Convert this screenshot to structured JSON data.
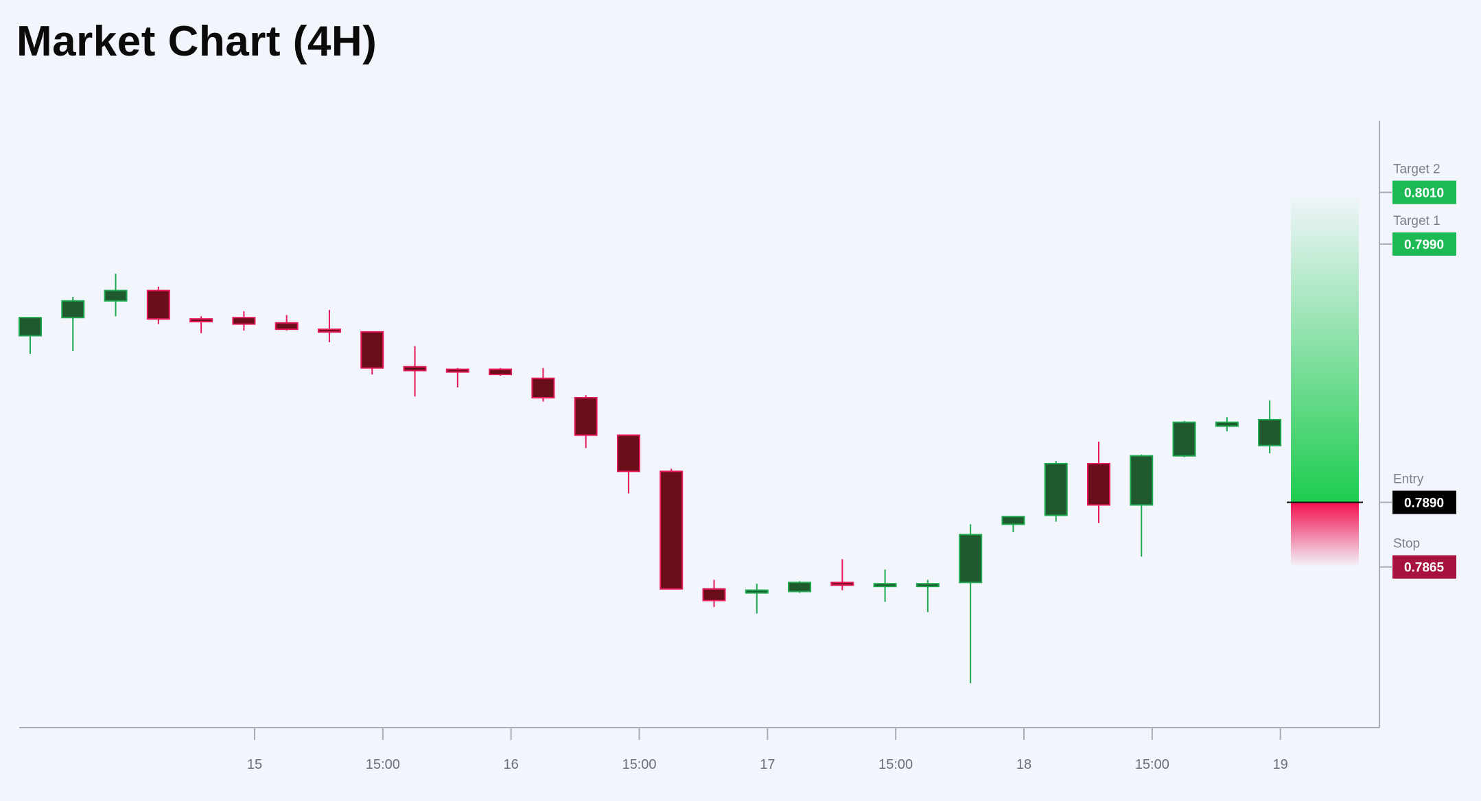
{
  "title": "Market Chart (4H)",
  "chart_data": {
    "type": "candlestick",
    "title": "Market Chart (4H)",
    "timeframe": "4H",
    "x_ticks": [
      {
        "label": "15",
        "index": 5.25
      },
      {
        "label": "15:00",
        "index": 8.25
      },
      {
        "label": "16",
        "index": 11.25
      },
      {
        "label": "15:00",
        "index": 14.25
      },
      {
        "label": "17",
        "index": 17.25
      },
      {
        "label": "15:00",
        "index": 20.25
      },
      {
        "label": "18",
        "index": 23.25
      },
      {
        "label": "15:00",
        "index": 26.25
      },
      {
        "label": "19",
        "index": 29.25
      }
    ],
    "ylim": [
      0.7819,
      0.8038
    ],
    "candles": [
      {
        "open": 0.79545,
        "high": 0.79595,
        "low": 0.79475,
        "close": 0.79615
      },
      {
        "open": 0.79615,
        "high": 0.79695,
        "low": 0.79485,
        "close": 0.7968
      },
      {
        "open": 0.7968,
        "high": 0.79785,
        "low": 0.7962,
        "close": 0.7972
      },
      {
        "open": 0.7972,
        "high": 0.79735,
        "low": 0.7959,
        "close": 0.7961
      },
      {
        "open": 0.7961,
        "high": 0.7962,
        "low": 0.79555,
        "close": 0.796
      },
      {
        "open": 0.79615,
        "high": 0.7964,
        "low": 0.79565,
        "close": 0.7959
      },
      {
        "open": 0.79595,
        "high": 0.79625,
        "low": 0.79565,
        "close": 0.7957
      },
      {
        "open": 0.7957,
        "high": 0.79645,
        "low": 0.7952,
        "close": 0.7956
      },
      {
        "open": 0.7956,
        "high": 0.7956,
        "low": 0.79395,
        "close": 0.7942
      },
      {
        "open": 0.79425,
        "high": 0.79505,
        "low": 0.7931,
        "close": 0.7941
      },
      {
        "open": 0.79415,
        "high": 0.7942,
        "low": 0.79345,
        "close": 0.79405
      },
      {
        "open": 0.79415,
        "high": 0.7942,
        "low": 0.7939,
        "close": 0.79395
      },
      {
        "open": 0.7938,
        "high": 0.7942,
        "low": 0.7929,
        "close": 0.79305
      },
      {
        "open": 0.79305,
        "high": 0.79315,
        "low": 0.7911,
        "close": 0.7916
      },
      {
        "open": 0.7916,
        "high": 0.7916,
        "low": 0.78935,
        "close": 0.7902
      },
      {
        "open": 0.7902,
        "high": 0.7903,
        "low": 0.78575,
        "close": 0.78565
      },
      {
        "open": 0.78565,
        "high": 0.786,
        "low": 0.78495,
        "close": 0.7852
      },
      {
        "open": 0.78555,
        "high": 0.78585,
        "low": 0.7847,
        "close": 0.7856
      },
      {
        "open": 0.78555,
        "high": 0.78595,
        "low": 0.7855,
        "close": 0.7859
      },
      {
        "open": 0.7859,
        "high": 0.7868,
        "low": 0.7856,
        "close": 0.7858
      },
      {
        "open": 0.7858,
        "high": 0.7864,
        "low": 0.78515,
        "close": 0.78585
      },
      {
        "open": 0.7858,
        "high": 0.786,
        "low": 0.78475,
        "close": 0.78585
      },
      {
        "open": 0.7859,
        "high": 0.78815,
        "low": 0.782,
        "close": 0.78775
      },
      {
        "open": 0.78815,
        "high": 0.78845,
        "low": 0.78785,
        "close": 0.78845
      },
      {
        "open": 0.7885,
        "high": 0.7906,
        "low": 0.78825,
        "close": 0.7905
      },
      {
        "open": 0.7905,
        "high": 0.79135,
        "low": 0.7882,
        "close": 0.7889
      },
      {
        "open": 0.7889,
        "high": 0.79085,
        "low": 0.7869,
        "close": 0.7908
      },
      {
        "open": 0.7908,
        "high": 0.79215,
        "low": 0.79075,
        "close": 0.7921
      },
      {
        "open": 0.79195,
        "high": 0.7923,
        "low": 0.79175,
        "close": 0.7921
      },
      {
        "open": 0.7912,
        "high": 0.79295,
        "low": 0.7909,
        "close": 0.7922
      }
    ],
    "levels": [
      {
        "name": "Target 2",
        "value": 0.801,
        "label": "0.8010",
        "color": "#1db954"
      },
      {
        "name": "Target 1",
        "value": 0.799,
        "label": "0.7990",
        "color": "#1db954"
      },
      {
        "name": "Entry",
        "value": 0.789,
        "label": "0.7890",
        "color": "#000000"
      },
      {
        "name": "Stop",
        "value": 0.7865,
        "label": "0.7865",
        "color": "#a8123f"
      }
    ],
    "colors": {
      "bull_body": "#1f5a2f",
      "bull_wick": "#1ea84f",
      "bear_body": "#6a0f19",
      "bear_wick": "#e5195a",
      "profit_zone": "#1ecc4f",
      "loss_zone": "#f2104f",
      "axis": "#a7abb5",
      "background": "#f2f5fc"
    }
  }
}
